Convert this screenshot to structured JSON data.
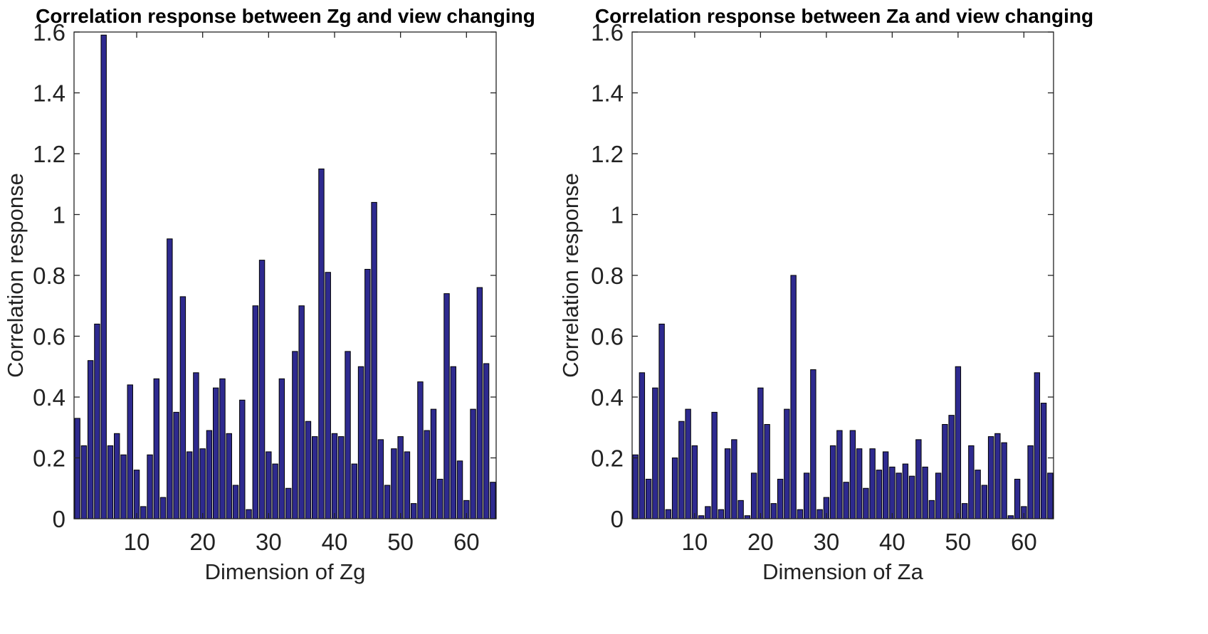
{
  "chart_data": [
    {
      "type": "bar",
      "title": "Correlation response between Zg and view changing",
      "xlabel": "Dimension of Zg",
      "ylabel": "Correlation response",
      "xlim": [
        0.5,
        64.5
      ],
      "ylim": [
        0,
        1.6
      ],
      "xticks": [
        10,
        20,
        30,
        40,
        50,
        60
      ],
      "yticks": [
        0,
        0.2,
        0.4,
        0.6,
        0.8,
        1,
        1.2,
        1.4,
        1.6
      ],
      "bar_color": "#2e2a8f",
      "grid": false,
      "x": [
        1,
        2,
        3,
        4,
        5,
        6,
        7,
        8,
        9,
        10,
        11,
        12,
        13,
        14,
        15,
        16,
        17,
        18,
        19,
        20,
        21,
        22,
        23,
        24,
        25,
        26,
        27,
        28,
        29,
        30,
        31,
        32,
        33,
        34,
        35,
        36,
        37,
        38,
        39,
        40,
        41,
        42,
        43,
        44,
        45,
        46,
        47,
        48,
        49,
        50,
        51,
        52,
        53,
        54,
        55,
        56,
        57,
        58,
        59,
        60,
        61,
        62,
        63,
        64
      ],
      "values": [
        0.33,
        0.24,
        0.52,
        0.64,
        1.59,
        0.24,
        0.28,
        0.21,
        0.44,
        0.16,
        0.04,
        0.21,
        0.46,
        0.07,
        0.92,
        0.35,
        0.73,
        0.22,
        0.48,
        0.23,
        0.29,
        0.43,
        0.46,
        0.28,
        0.11,
        0.39,
        0.03,
        0.7,
        0.85,
        0.22,
        0.18,
        0.46,
        0.1,
        0.55,
        0.7,
        0.32,
        0.27,
        1.15,
        0.81,
        0.28,
        0.27,
        0.55,
        0.18,
        0.5,
        0.82,
        1.04,
        0.26,
        0.11,
        0.23,
        0.27,
        0.22,
        0.05,
        0.45,
        0.29,
        0.36,
        0.13,
        0.74,
        0.5,
        0.19,
        0.06,
        0.36,
        0.76,
        0.51,
        0.12
      ]
    },
    {
      "type": "bar",
      "title": "Correlation response between Za and view changing",
      "xlabel": "Dimension of Za",
      "ylabel": "Correlation response",
      "xlim": [
        0.5,
        64.5
      ],
      "ylim": [
        0,
        1.6
      ],
      "xticks": [
        10,
        20,
        30,
        40,
        50,
        60
      ],
      "yticks": [
        0,
        0.2,
        0.4,
        0.6,
        0.8,
        1,
        1.2,
        1.4,
        1.6
      ],
      "bar_color": "#2e2a8f",
      "grid": false,
      "x": [
        1,
        2,
        3,
        4,
        5,
        6,
        7,
        8,
        9,
        10,
        11,
        12,
        13,
        14,
        15,
        16,
        17,
        18,
        19,
        20,
        21,
        22,
        23,
        24,
        25,
        26,
        27,
        28,
        29,
        30,
        31,
        32,
        33,
        34,
        35,
        36,
        37,
        38,
        39,
        40,
        41,
        42,
        43,
        44,
        45,
        46,
        47,
        48,
        49,
        50,
        51,
        52,
        53,
        54,
        55,
        56,
        57,
        58,
        59,
        60,
        61,
        62,
        63,
        64
      ],
      "values": [
        0.21,
        0.48,
        0.13,
        0.43,
        0.64,
        0.03,
        0.2,
        0.32,
        0.36,
        0.24,
        0.01,
        0.04,
        0.35,
        0.03,
        0.23,
        0.26,
        0.06,
        0.01,
        0.15,
        0.43,
        0.31,
        0.05,
        0.13,
        0.36,
        0.8,
        0.03,
        0.15,
        0.49,
        0.03,
        0.07,
        0.24,
        0.29,
        0.12,
        0.29,
        0.23,
        0.1,
        0.23,
        0.16,
        0.22,
        0.17,
        0.15,
        0.18,
        0.14,
        0.26,
        0.17,
        0.06,
        0.15,
        0.31,
        0.34,
        0.5,
        0.05,
        0.24,
        0.16,
        0.11,
        0.27,
        0.28,
        0.25,
        0.01,
        0.13,
        0.04,
        0.24,
        0.48,
        0.38,
        0.15
      ]
    }
  ]
}
